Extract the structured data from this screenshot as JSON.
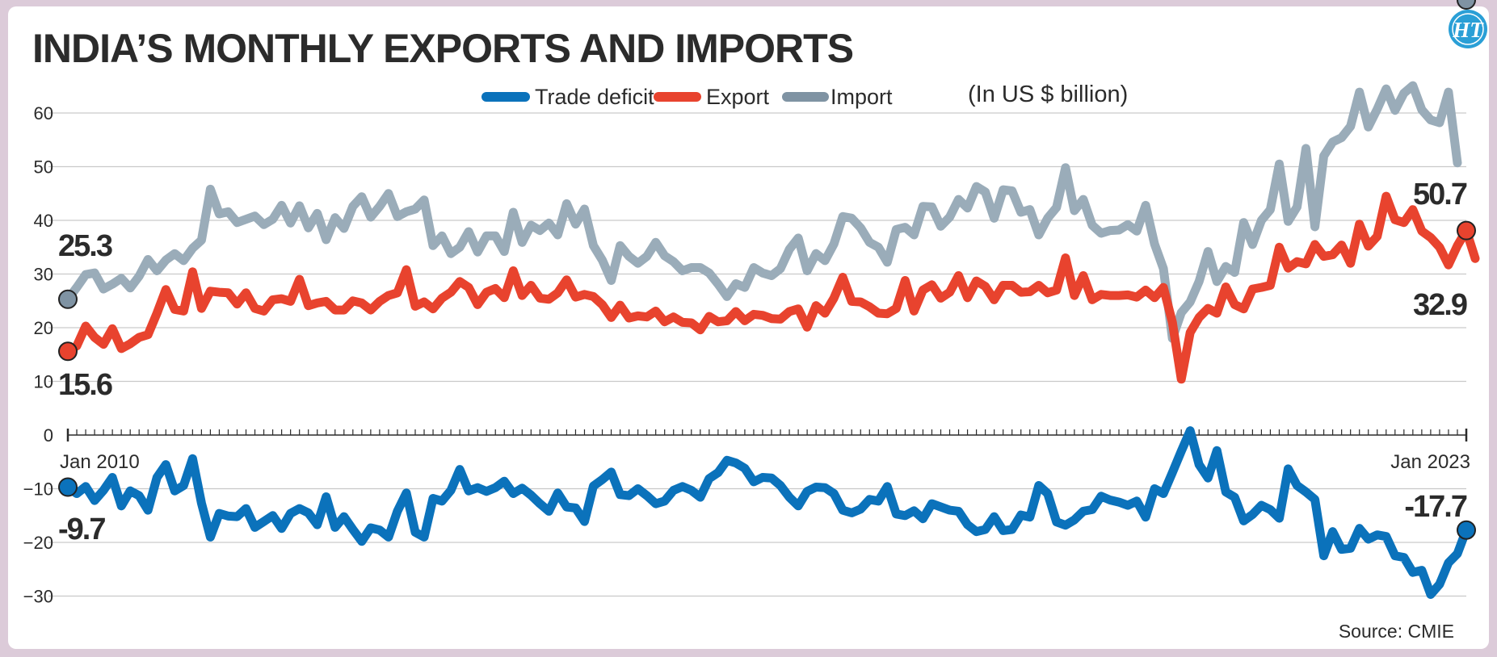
{
  "chart_data": {
    "type": "line",
    "title": "INDIA’S MONTHLY EXPORTS AND IMPORTS",
    "unit_label": "(In US $ billion)",
    "source": "Source: CMIE",
    "x_start": "Jan 2010",
    "x_end": "Jan 2023",
    "x_start_label": "Jan 2010",
    "x_end_label": "Jan 2023",
    "ylim": [
      -30,
      65
    ],
    "yticks": [
      60,
      50,
      40,
      30,
      20,
      10,
      0,
      -10,
      -20,
      -30
    ],
    "grid": true,
    "legend_position": "top",
    "series": [
      {
        "name": "Trade deficit",
        "color": "#0b72bb",
        "values": [
          -9.7,
          -10.9,
          -9.6,
          -12.2,
          -10.3,
          -7.9,
          -13.2,
          -10.4,
          -11.3,
          -14.0,
          -7.9,
          -5.5,
          -10.4,
          -9.4,
          -4.4,
          -12.7,
          -19.0,
          -14.6,
          -15.1,
          -15.2,
          -13.7,
          -17.2,
          -16.1,
          -15.0,
          -17.4,
          -14.6,
          -13.7,
          -14.5,
          -16.7,
          -11.5,
          -17.2,
          -15.2,
          -17.6,
          -19.8,
          -17.3,
          -17.7,
          -19.0,
          -14.2,
          -10.8,
          -18.1,
          -19.0,
          -11.8,
          -12.3,
          -10.3,
          -6.4,
          -10.4,
          -9.8,
          -10.5,
          -9.8,
          -8.6,
          -10.9,
          -9.9,
          -11.2,
          -12.8,
          -14.2,
          -10.8,
          -13.4,
          -13.6,
          -16.1,
          -9.5,
          -8.3,
          -6.9,
          -11.1,
          -11.3,
          -10.0,
          -11.3,
          -12.8,
          -12.3,
          -10.3,
          -9.6,
          -10.3,
          -11.6,
          -8.1,
          -7.0,
          -4.7,
          -5.2,
          -6.2,
          -8.7,
          -7.9,
          -8.0,
          -9.4,
          -11.6,
          -13.2,
          -10.5,
          -9.7,
          -9.8,
          -10.9,
          -14.0,
          -14.5,
          -13.8,
          -12.0,
          -12.3,
          -9.6,
          -14.7,
          -15.0,
          -14.1,
          -15.6,
          -12.8,
          -13.4,
          -14.0,
          -14.2,
          -16.7,
          -18.0,
          -17.6,
          -15.2,
          -17.8,
          -17.6,
          -14.9,
          -15.3,
          -9.4,
          -10.9,
          -16.2,
          -16.8,
          -15.8,
          -14.2,
          -13.9,
          -11.4,
          -12.1,
          -12.5,
          -13.1,
          -12.3,
          -15.3,
          -10.0,
          -10.9,
          -7.0,
          -3.0,
          0.8,
          -5.5,
          -8.0,
          -2.9,
          -10.6,
          -11.6,
          -16.0,
          -14.8,
          -13.1,
          -13.9,
          -15.5,
          -6.3,
          -9.4,
          -10.6,
          -12.0,
          -22.5,
          -18.0,
          -21.3,
          -21.1,
          -17.4,
          -19.4,
          -18.6,
          -18.9,
          -22.5,
          -22.8,
          -25.6,
          -25.2,
          -29.7,
          -27.8,
          -23.8,
          -22.1,
          -17.7
        ]
      },
      {
        "name": "Export",
        "color": "#e8432e",
        "values": [
          15.6,
          16.6,
          20.3,
          18.2,
          16.9,
          19.8,
          16.1,
          17.0,
          18.2,
          18.7,
          22.7,
          27.1,
          23.4,
          23.1,
          30.4,
          23.6,
          26.8,
          26.6,
          26.5,
          24.4,
          26.5,
          23.6,
          23.1,
          25.2,
          25.4,
          24.9,
          29.0,
          24.1,
          24.6,
          24.9,
          23.3,
          23.3,
          25.0,
          24.6,
          23.3,
          24.9,
          26.0,
          26.5,
          30.8,
          24.0,
          24.8,
          23.5,
          25.5,
          26.6,
          28.6,
          27.5,
          24.3,
          26.6,
          27.3,
          25.6,
          30.6,
          26.0,
          27.9,
          25.5,
          25.3,
          26.5,
          28.9,
          25.7,
          26.2,
          25.8,
          24.3,
          21.9,
          24.2,
          21.8,
          22.2,
          22.0,
          23.1,
          21.1,
          22.0,
          21.0,
          20.9,
          19.6,
          22.1,
          21.1,
          21.3,
          23.0,
          21.3,
          22.5,
          22.3,
          21.7,
          21.6,
          23.0,
          23.5,
          20.1,
          24.1,
          22.7,
          25.5,
          29.4,
          24.9,
          24.8,
          23.9,
          22.7,
          22.6,
          23.6,
          28.8,
          23.1,
          27.0,
          28.0,
          25.5,
          26.6,
          29.7,
          25.6,
          28.7,
          27.7,
          25.2,
          27.9,
          27.9,
          26.6,
          26.7,
          27.9,
          26.5,
          27.0,
          33.0,
          26.0,
          29.7,
          25.2,
          26.2,
          26.0,
          26.0,
          26.1,
          25.7,
          27.0,
          25.6,
          27.5,
          21.0,
          10.4,
          19.1,
          21.9,
          23.6,
          22.7,
          27.6,
          24.3,
          23.5,
          27.2,
          27.5,
          27.9,
          35.0,
          31.1,
          32.3,
          31.9,
          35.5,
          33.3,
          33.6,
          35.4,
          32.0,
          39.3,
          35.2,
          37.0,
          44.5,
          40.1,
          39.6,
          42.0,
          38.0,
          36.8,
          35.0,
          31.7,
          35.3,
          38.1,
          32.9
        ]
      },
      {
        "name": "Import",
        "color": "#9aacb9",
        "values": [
          25.3,
          27.5,
          29.9,
          30.2,
          27.2,
          28.1,
          29.2,
          27.4,
          29.6,
          32.7,
          30.6,
          32.6,
          33.8,
          32.5,
          34.8,
          36.3,
          45.8,
          41.2,
          41.6,
          39.6,
          40.2,
          40.8,
          39.2,
          40.2,
          42.8,
          39.5,
          42.7,
          38.6,
          41.3,
          36.4,
          40.5,
          38.5,
          42.6,
          44.4,
          40.6,
          42.6,
          45.0,
          40.7,
          41.6,
          42.1,
          43.8,
          35.3,
          37.1,
          33.8,
          35.0,
          37.9,
          34.1,
          37.1,
          37.1,
          34.2,
          41.5,
          35.9,
          39.1,
          38.1,
          39.5,
          37.3,
          43.1,
          39.3,
          42.1,
          35.3,
          32.6,
          28.8,
          35.3,
          33.3,
          32.0,
          33.3,
          35.9,
          33.4,
          32.3,
          30.6,
          31.2,
          31.2,
          30.2,
          28.1,
          25.8,
          28.2,
          27.5,
          31.2,
          30.2,
          29.7,
          31.0,
          34.6,
          36.7,
          30.6,
          33.8,
          32.5,
          35.6,
          40.7,
          40.4,
          38.6,
          35.9,
          35.0,
          32.2,
          38.3,
          38.7,
          37.3,
          42.6,
          42.5,
          38.9,
          40.6,
          43.9,
          42.3,
          46.3,
          45.3,
          40.4,
          45.7,
          45.5,
          41.5,
          42.0,
          37.3,
          40.4,
          42.4,
          49.8,
          41.8,
          43.9,
          39.1,
          37.6,
          38.1,
          38.2,
          39.2,
          38.0,
          42.8,
          35.6,
          31.0,
          18.0,
          22.8,
          24.8,
          28.6,
          34.2,
          28.6,
          31.4,
          30.3,
          39.6,
          35.5,
          40.0,
          42.0,
          50.5,
          39.8,
          42.5,
          53.4,
          38.8,
          52.0,
          54.6,
          55.4,
          57.5,
          63.9,
          57.4,
          60.7,
          64.5,
          60.5,
          63.7,
          65.1,
          60.6,
          58.7,
          58.2,
          63.9,
          50.7
        ]
      }
    ],
    "annotations": {
      "import_start": "25.3",
      "export_start": "15.6",
      "deficit_start": "-9.7",
      "import_end": "50.7",
      "export_end": "32.9",
      "deficit_end": "-17.7"
    }
  },
  "logo_text": "HT"
}
